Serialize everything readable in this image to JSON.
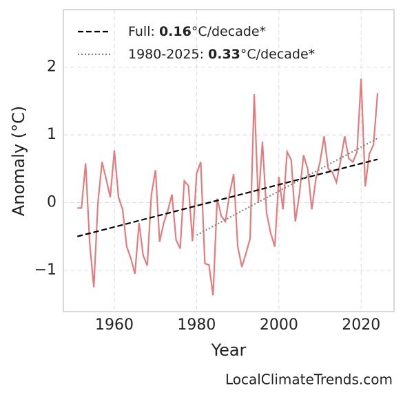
{
  "chart_data": {
    "type": "line",
    "x_label": "Year",
    "y_label": "Anomaly (°C)",
    "watermark": "LocalClimateTrends.com",
    "xlim": [
      1947.6,
      2028.0
    ],
    "ylim": [
      -1.61,
      2.85
    ],
    "xticks": [
      1960,
      1980,
      2000,
      2020
    ],
    "yticks": [
      {
        "value": -1,
        "label": "−1"
      },
      0,
      1,
      2
    ],
    "grid": true,
    "legend": "upper left",
    "series": [
      {
        "color": "#e47c7e",
        "style": "solid",
        "x": [
          1951,
          1952,
          1953,
          1954,
          1955,
          1956,
          1957,
          1958,
          1959,
          1960,
          1961,
          1962,
          1963,
          1964,
          1965,
          1966,
          1967,
          1968,
          1969,
          1970,
          1971,
          1972,
          1973,
          1974,
          1975,
          1976,
          1977,
          1978,
          1979,
          1980,
          1981,
          1982,
          1983,
          1984,
          1985,
          1986,
          1987,
          1988,
          1989,
          1990,
          1991,
          1992,
          1993,
          1994,
          1995,
          1996,
          1997,
          1998,
          1999,
          2000,
          2001,
          2002,
          2003,
          2004,
          2005,
          2006,
          2007,
          2008,
          2009,
          2010,
          2011,
          2012,
          2013,
          2014,
          2015,
          2016,
          2017,
          2018,
          2019,
          2020,
          2021,
          2022,
          2023,
          2024
        ],
        "values": [
          -0.08,
          -0.08,
          0.58,
          -0.6,
          -1.25,
          0.0,
          0.6,
          0.35,
          0.08,
          0.77,
          0.08,
          -0.1,
          -0.65,
          -0.82,
          -1.05,
          -0.3,
          -0.78,
          -0.93,
          0.12,
          0.48,
          -0.58,
          -0.3,
          -0.12,
          0.12,
          -0.55,
          -0.68,
          0.32,
          0.25,
          -0.57,
          0.43,
          0.6,
          -0.9,
          -0.92,
          -1.37,
          0.06,
          -0.2,
          -0.28,
          0.13,
          0.42,
          -0.65,
          -0.95,
          -0.75,
          -0.53,
          1.6,
          0.0,
          0.9,
          -0.15,
          -0.45,
          -0.65,
          0.38,
          -0.1,
          0.75,
          0.63,
          -0.28,
          0.13,
          0.7,
          0.5,
          -0.1,
          0.35,
          0.6,
          0.98,
          0.5,
          0.45,
          0.3,
          0.62,
          0.98,
          0.65,
          0.6,
          0.75,
          1.83,
          0.24,
          0.72,
          0.85,
          1.62
        ]
      },
      {
        "name": [
          "Full: ",
          "0.16",
          "°C/decade*"
        ],
        "color": "#000000",
        "style": "dashed",
        "x": [
          1951,
          2024
        ],
        "values": [
          -0.5,
          0.64
        ]
      },
      {
        "name": [
          "1980-2025: ",
          "0.33",
          "°C/decade*"
        ],
        "color": "#808080",
        "style": "dotted",
        "x": [
          1980,
          2024
        ],
        "values": [
          -0.48,
          0.95
        ]
      }
    ]
  }
}
